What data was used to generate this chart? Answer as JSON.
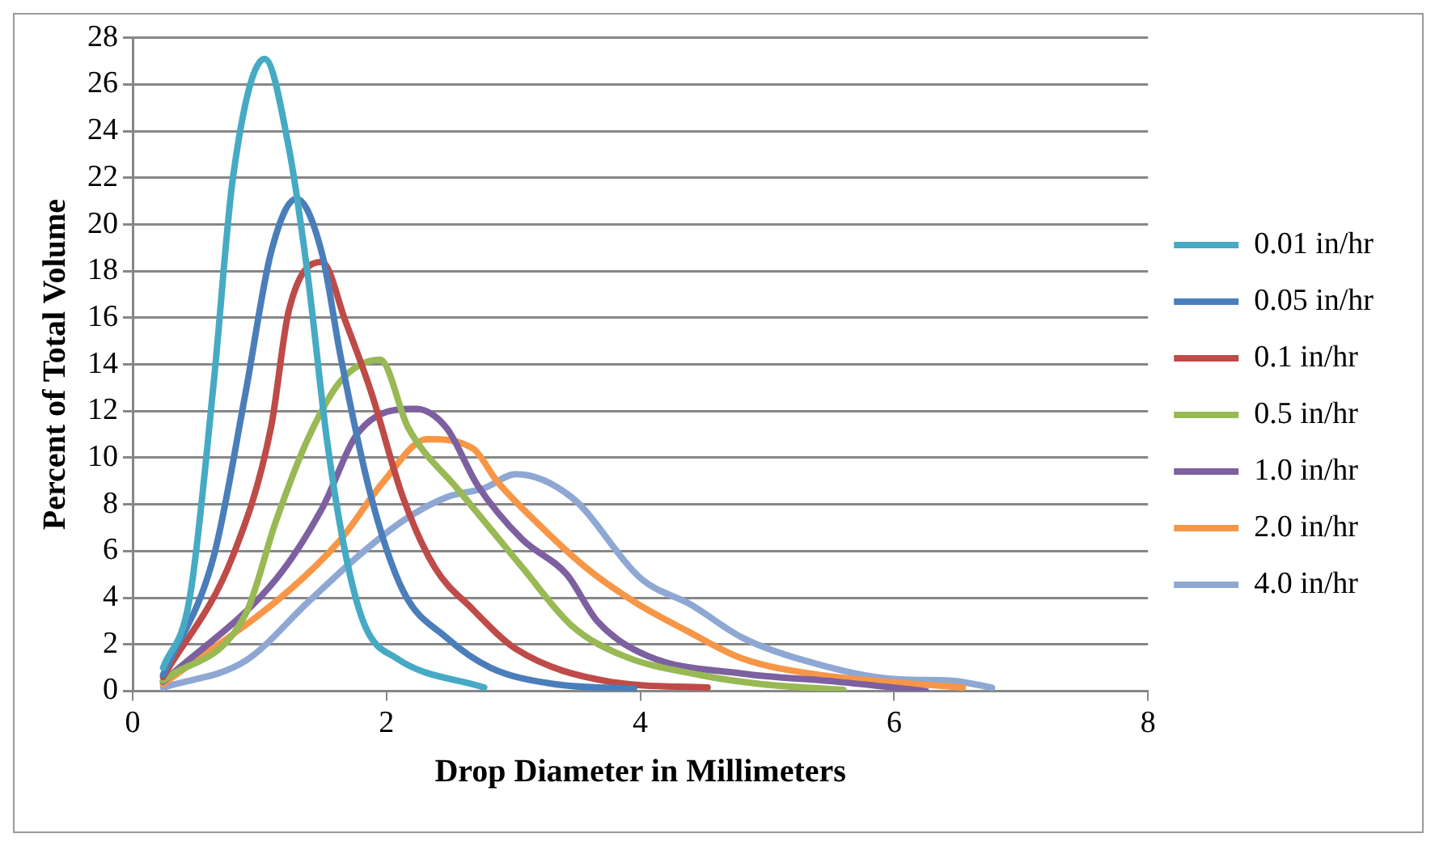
{
  "chart_data": {
    "type": "line",
    "xlabel": "Drop Diameter in Millimeters",
    "ylabel": "Percent of Total Volume",
    "xlim": [
      0,
      8
    ],
    "xticks": [
      0,
      2,
      4,
      6,
      8
    ],
    "ylim": [
      0,
      28
    ],
    "yticks": [
      0,
      2,
      4,
      6,
      8,
      10,
      12,
      14,
      16,
      18,
      20,
      22,
      24,
      26,
      28
    ],
    "grid": "y",
    "legend": "right",
    "marker": "none",
    "line_style": "solid",
    "series": [
      {
        "name": "0.01 in/hr",
        "color": "#46aac5",
        "x": [
          0.24,
          0.45,
          0.64,
          0.79,
          1.04,
          1.23,
          1.38,
          1.53,
          1.68,
          1.83,
          2.08,
          2.77
        ],
        "values": [
          1.0,
          4,
          13.3,
          22,
          27.1,
          23.3,
          17.8,
          10.8,
          5.8,
          2.8,
          1.4,
          0.15
        ]
      },
      {
        "name": "0.05 in/hr",
        "color": "#4a7ebb",
        "x": [
          0.24,
          0.64,
          0.89,
          1.09,
          1.29,
          1.49,
          1.64,
          1.88,
          2.13,
          2.47,
          2.82,
          3.32,
          3.95
        ],
        "values": [
          0.7,
          5.8,
          12.8,
          18.8,
          21.1,
          18.8,
          14.3,
          8.3,
          4.3,
          2.3,
          1.0,
          0.3,
          0.1
        ]
      },
      {
        "name": "0.1 in/hr",
        "color": "#be4b48",
        "x": [
          0.24,
          0.79,
          1.09,
          1.23,
          1.49,
          1.68,
          1.88,
          2.13,
          2.38,
          2.68,
          3.02,
          3.76,
          4.53
        ],
        "values": [
          0.6,
          5.8,
          11.3,
          16.3,
          18.4,
          15.8,
          12.8,
          8.3,
          5.3,
          3.5,
          1.8,
          0.4,
          0.15
        ]
      },
      {
        "name": "0.5 in/hr",
        "color": "#98b954",
        "x": [
          0.24,
          0.89,
          1.13,
          1.38,
          1.64,
          1.95,
          2.17,
          2.57,
          3.07,
          3.46,
          3.87,
          4.46,
          4.95,
          5.6
        ],
        "values": [
          0.45,
          3.3,
          7.3,
          10.8,
          13.3,
          14.2,
          11.3,
          8.6,
          5.3,
          2.8,
          1.5,
          0.7,
          0.3,
          0.05
        ]
      },
      {
        "name": "1.0 in/hr",
        "color": "#7d60a0",
        "x": [
          0.24,
          1.13,
          1.49,
          1.78,
          2.23,
          2.47,
          2.72,
          3.07,
          3.42,
          3.66,
          4.06,
          4.8,
          5.55,
          6.25
        ],
        "values": [
          0.4,
          4.8,
          7.8,
          11.1,
          12.1,
          11.3,
          8.8,
          6.5,
          5.0,
          3.0,
          1.5,
          0.75,
          0.4,
          0
        ]
      },
      {
        "name": "2.0 in/hr",
        "color": "#f79646",
        "x": [
          0.24,
          1.23,
          1.64,
          1.98,
          2.32,
          2.68,
          2.87,
          3.17,
          3.57,
          3.96,
          4.36,
          4.8,
          5.4,
          6.54
        ],
        "values": [
          0.3,
          4.3,
          6.5,
          9.0,
          10.8,
          10.4,
          9.0,
          7.3,
          5.3,
          3.8,
          2.6,
          1.4,
          0.7,
          0.15
        ]
      },
      {
        "name": "4.0 in/hr",
        "color": "#8ea8d3",
        "x": [
          0.24,
          0.89,
          1.38,
          1.78,
          2.13,
          2.47,
          2.77,
          3.02,
          3.46,
          4.01,
          4.4,
          4.8,
          5.3,
          6.04,
          6.44,
          6.77
        ],
        "values": [
          0.15,
          1.3,
          3.8,
          5.8,
          7.3,
          8.3,
          8.7,
          9.3,
          8.3,
          4.8,
          3.7,
          2.3,
          1.3,
          0.5,
          0.45,
          0.15
        ]
      }
    ]
  }
}
